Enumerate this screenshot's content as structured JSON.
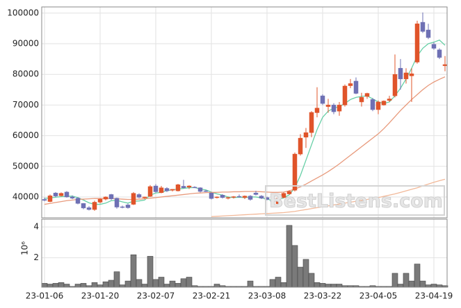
{
  "chart_data": [
    {
      "type": "candlestick",
      "categories": [
        "23-01-06",
        null,
        null,
        null,
        null,
        null,
        null,
        null,
        null,
        null,
        "23-01-20",
        null,
        null,
        null,
        null,
        null,
        null,
        null,
        null,
        null,
        "23-02-07",
        null,
        null,
        null,
        null,
        null,
        null,
        null,
        null,
        null,
        "23-02-21",
        null,
        null,
        null,
        null,
        null,
        null,
        null,
        null,
        null,
        "23-03-08",
        null,
        null,
        null,
        null,
        null,
        null,
        null,
        null,
        null,
        "23-03-22",
        null,
        null,
        null,
        null,
        null,
        null,
        null,
        null,
        null,
        "23-04-05",
        null,
        null,
        null,
        null,
        null,
        null,
        null,
        null,
        null,
        "23-04-19",
        null,
        null
      ],
      "open": [
        39200,
        38500,
        41300,
        40400,
        41600,
        40000,
        39600,
        37900,
        36500,
        35900,
        38300,
        39300,
        40800,
        39600,
        36800,
        37400,
        37600,
        40800,
        39700,
        40200,
        43600,
        41400,
        42800,
        42200,
        42000,
        43500,
        43200,
        43200,
        43000,
        42000,
        41300,
        39800,
        40600,
        39600,
        39900,
        40200,
        39800,
        40300,
        41300,
        40300,
        39800,
        38800,
        37800,
        39800,
        41000,
        42200,
        54000,
        59500,
        61000,
        67500,
        73000,
        69500,
        70000,
        68000,
        70000,
        76300,
        77800,
        71000,
        72800,
        71800,
        68500,
        70000,
        71500,
        73000,
        82000,
        78500,
        79500,
        84000,
        97000,
        94500,
        89800,
        88000,
        82800
      ],
      "high": [
        39800,
        40800,
        41600,
        41500,
        41900,
        40500,
        39900,
        38000,
        37000,
        38800,
        39600,
        40200,
        41000,
        39800,
        37200,
        37800,
        41600,
        41200,
        40100,
        43900,
        44200,
        43600,
        43200,
        42600,
        44300,
        45600,
        43800,
        43500,
        43200,
        42300,
        41500,
        40200,
        40900,
        40100,
        40300,
        40800,
        40500,
        40600,
        42000,
        40600,
        40100,
        39000,
        39900,
        41500,
        42200,
        54500,
        60500,
        62500,
        68000,
        75800,
        73500,
        72000,
        70600,
        71000,
        76700,
        78500,
        79000,
        74000,
        74000,
        72300,
        71500,
        71500,
        73000,
        86500,
        85000,
        82000,
        82000,
        97500,
        100200,
        96500,
        90500,
        88500,
        86000
      ],
      "low": [
        38600,
        38300,
        40000,
        40200,
        39800,
        39300,
        37600,
        36000,
        35600,
        35500,
        37900,
        38900,
        39000,
        36200,
        36300,
        36200,
        37400,
        39600,
        39400,
        40000,
        41400,
        41200,
        41600,
        41800,
        41800,
        42800,
        42600,
        42900,
        41500,
        41600,
        39200,
        39500,
        39500,
        39200,
        39500,
        39800,
        39300,
        38800,
        40500,
        39300,
        38900,
        38200,
        37400,
        39600,
        40800,
        41800,
        53500,
        56000,
        59500,
        66000,
        70000,
        67500,
        67000,
        66500,
        69500,
        75500,
        73500,
        69500,
        72000,
        68000,
        67000,
        69800,
        71000,
        72500,
        75000,
        77000,
        71000,
        83500,
        93500,
        91500,
        88000,
        85000,
        81000
      ],
      "close": [
        38900,
        40400,
        40300,
        41200,
        40000,
        39600,
        37900,
        36400,
        35900,
        38300,
        39300,
        40000,
        39400,
        36700,
        36700,
        36500,
        41200,
        39900,
        40000,
        43400,
        41700,
        43000,
        42000,
        42500,
        44000,
        43000,
        43600,
        43200,
        41800,
        41800,
        39500,
        40000,
        39800,
        39800,
        40100,
        40000,
        40300,
        39200,
        40800,
        39600,
        39200,
        38500,
        39600,
        41200,
        41800,
        54000,
        59200,
        61000,
        67600,
        69000,
        70500,
        70000,
        67800,
        70000,
        76200,
        77000,
        73800,
        72500,
        73800,
        68500,
        71000,
        71300,
        72000,
        80000,
        78500,
        80500,
        80200,
        96500,
        94000,
        92000,
        88500,
        85500,
        83200
      ],
      "up_color": "#e0542a",
      "down_color": "#6e70b4",
      "lines": [
        {
          "color": "#66cfa6",
          "values": [
            39500,
            39700,
            39900,
            40100,
            40200,
            40300,
            39800,
            39000,
            38100,
            37600,
            37600,
            38000,
            38800,
            38900,
            38400,
            38000,
            38600,
            38700,
            39000,
            40600,
            41300,
            41500,
            42100,
            42300,
            42600,
            42800,
            43000,
            43100,
            42600,
            42300,
            41600,
            41000,
            40600,
            40000,
            39800,
            39900,
            39800,
            40000,
            40000,
            39700,
            39300,
            38800,
            39100,
            39700,
            40700,
            43000,
            47000,
            52000,
            57000,
            62000,
            66000,
            68000,
            69000,
            69500,
            70500,
            71800,
            72500,
            72800,
            73000,
            72000,
            71000,
            70500,
            71000,
            73000,
            75500,
            78500,
            82000,
            86000,
            88500,
            90000,
            90500,
            91200,
            89500
          ]
        },
        {
          "color": "#e89a7c",
          "values": [
            37600,
            37900,
            38200,
            38500,
            38800,
            39000,
            39200,
            39300,
            39400,
            39500,
            39500,
            39500,
            39500,
            39400,
            39300,
            39200,
            39200,
            39300,
            39400,
            39600,
            39800,
            40000,
            40200,
            40400,
            40600,
            40800,
            41000,
            41200,
            41300,
            41400,
            41500,
            41500,
            41600,
            41600,
            41700,
            41700,
            41800,
            41800,
            41800,
            41700,
            41600,
            41500,
            41500,
            41600,
            42000,
            42600,
            43300,
            44200,
            45200,
            46200,
            47200,
            48300,
            49500,
            50800,
            52200,
            53600,
            55000,
            56400,
            57800,
            59200,
            60600,
            62300,
            64200,
            66200,
            68200,
            70000,
            71800,
            73400,
            75000,
            76400,
            77500,
            78400,
            79200
          ]
        },
        {
          "color": "#f2b898",
          "values": [
            null,
            null,
            null,
            null,
            null,
            null,
            null,
            null,
            null,
            null,
            null,
            null,
            null,
            null,
            null,
            null,
            null,
            null,
            null,
            null,
            null,
            null,
            null,
            null,
            null,
            null,
            null,
            null,
            null,
            null,
            33600,
            33700,
            33800,
            33900,
            34000,
            34100,
            34200,
            34300,
            34400,
            34500,
            34600,
            34700,
            34800,
            34900,
            35100,
            35300,
            35600,
            35900,
            36200,
            36500,
            36800,
            37100,
            37400,
            37700,
            38000,
            38300,
            38600,
            38900,
            39200,
            39500,
            39800,
            40200,
            40600,
            41000,
            41500,
            42000,
            42500,
            43000,
            43600,
            44200,
            44800,
            45300,
            45800
          ]
        }
      ],
      "ylim": [
        33200,
        102000
      ],
      "yticks": [
        40000,
        50000,
        60000,
        70000,
        80000,
        90000,
        100000
      ],
      "grid": true,
      "watermark": "BestListens.com"
    },
    {
      "type": "bar",
      "ylabel": "10⁶",
      "color": "#7a7a7a",
      "values": [
        0.35,
        0.3,
        0.35,
        0.4,
        0.3,
        0.15,
        0.3,
        0.35,
        0.2,
        0.4,
        0.25,
        0.45,
        0.55,
        1.1,
        0.25,
        0.5,
        2.2,
        0.6,
        0.3,
        2.1,
        0.6,
        0.75,
        0.3,
        0.5,
        0.35,
        0.65,
        0.75,
        0.2,
        0.15,
        0.15,
        0.15,
        0.3,
        0.2,
        0.15,
        0.15,
        0.15,
        0.15,
        0.5,
        0.15,
        0.15,
        0.15,
        0.6,
        0.75,
        0.4,
        4.1,
        2.8,
        1.4,
        1.9,
        1.0,
        0.4,
        0.35,
        0.3,
        0.3,
        0.3,
        0.2,
        0.2,
        0.2,
        0.15,
        0.15,
        0.2,
        0.15,
        0.15,
        0.15,
        1.0,
        0.3,
        1.0,
        0.5,
        1.6,
        0.5,
        0.25,
        0.3,
        0.25,
        0.2
      ],
      "ylim": [
        0.1,
        4.5
      ],
      "yticks": [
        2,
        4
      ],
      "grid": true
    }
  ]
}
